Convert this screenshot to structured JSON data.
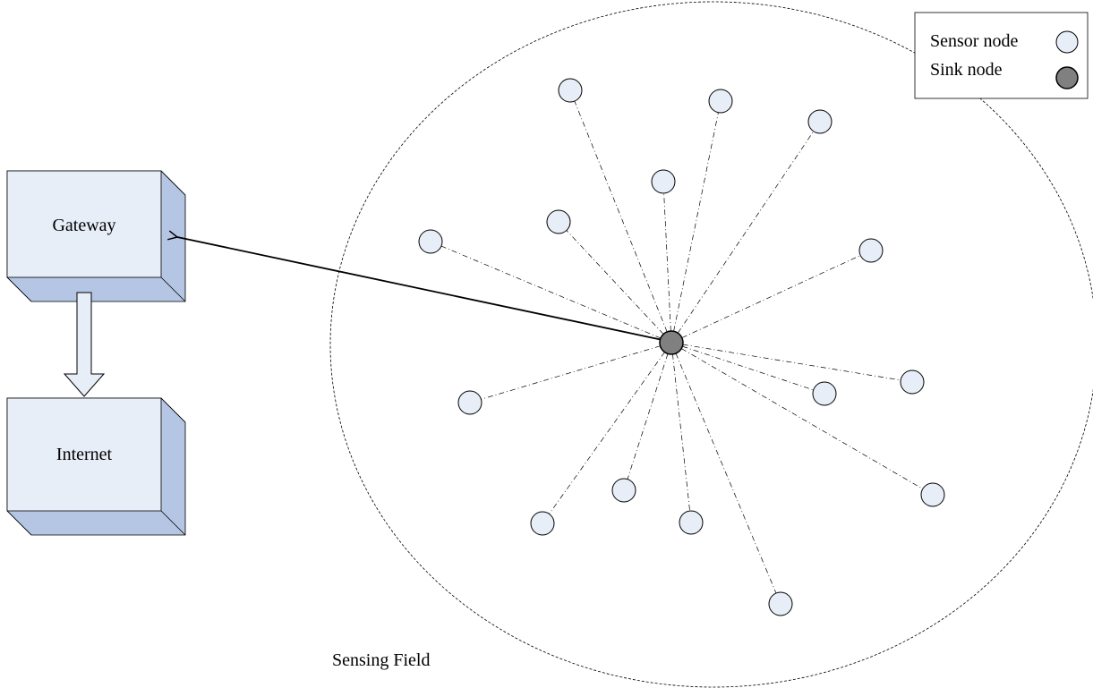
{
  "diagram": {
    "gateway_label": "Gateway",
    "internet_label": "Internet",
    "field_label": "Sensing Field"
  },
  "legend": {
    "sensor_label": "Sensor node",
    "sink_label": "Sink node"
  },
  "colors": {
    "sensor_fill": "#e8eef8",
    "sink_fill": "#808080",
    "box_face": "#e8eef8",
    "box_side": "#b4c6e4",
    "line": "#000000"
  }
}
